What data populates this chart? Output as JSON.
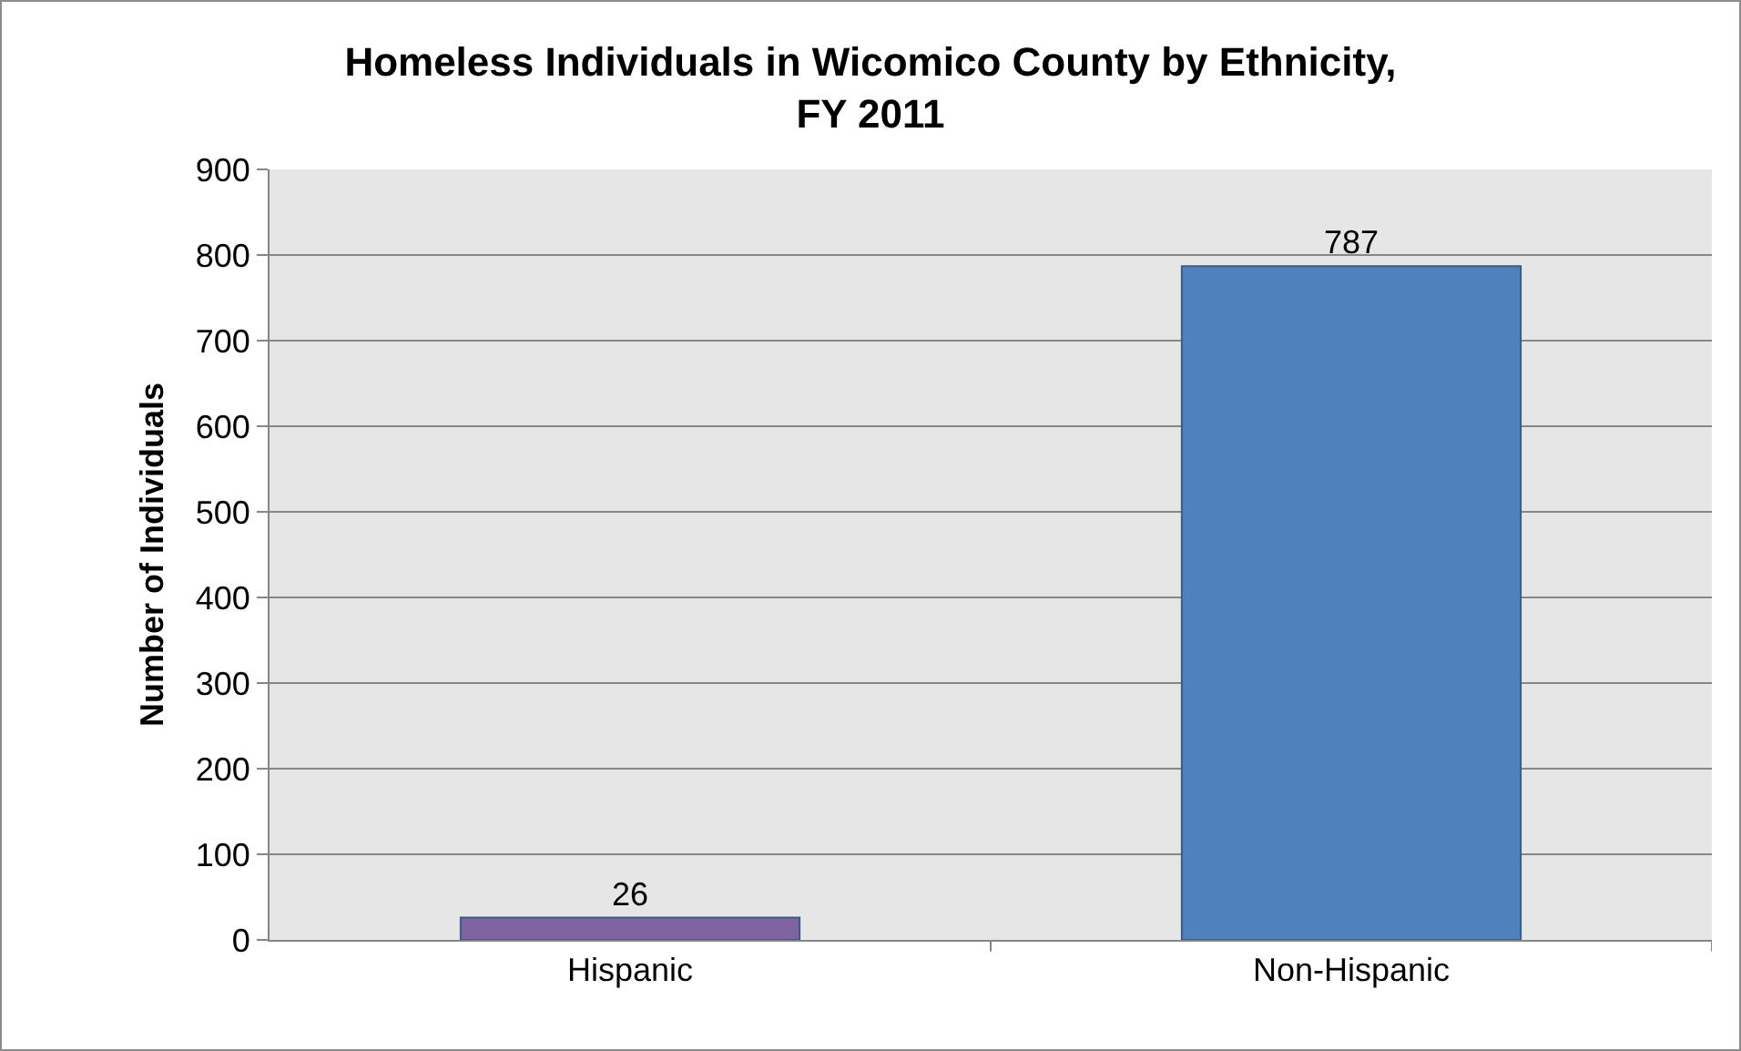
{
  "chart_data": {
    "type": "bar",
    "title": "Homeless Individuals in Wicomico County by Ethnicity, FY 2011",
    "ylabel": "Number of Individuals",
    "categories": [
      "Hispanic",
      "Non-Hispanic"
    ],
    "values": [
      26,
      787
    ],
    "colors": [
      "#8064a2",
      "#4f81bd"
    ],
    "ylim": [
      0,
      900
    ],
    "yticks": [
      0,
      100,
      200,
      300,
      400,
      500,
      600,
      700,
      800,
      900
    ],
    "grid": "y",
    "data_labels": true
  }
}
